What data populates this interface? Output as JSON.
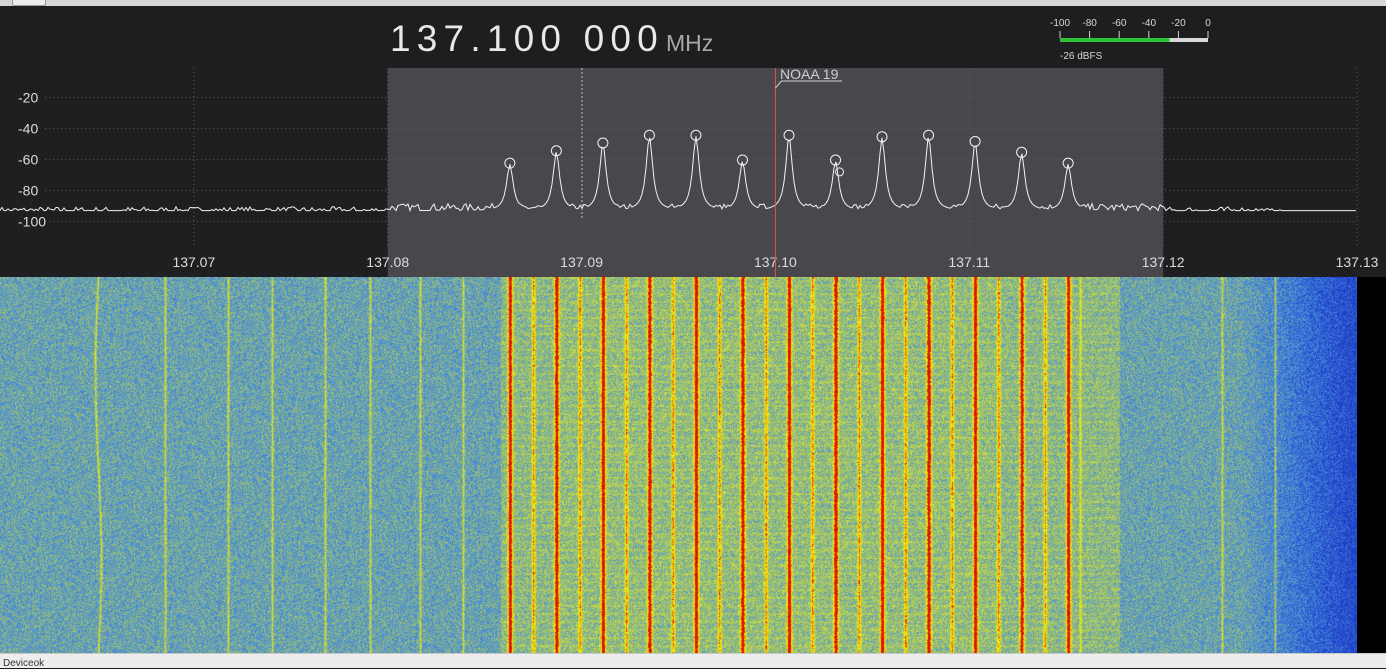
{
  "frequency": {
    "digits": "137.100 000",
    "unit": "MHz"
  },
  "level_meter": {
    "scale_labels": [
      "-100",
      "-80",
      "-60",
      "-40",
      "-20",
      "0"
    ],
    "level_text": "-26 dBFS",
    "level_fraction": 0.74,
    "bar_color": "#2ec43a"
  },
  "spectrum": {
    "y_labels": [
      "-20",
      "-40",
      "-60",
      "-80",
      "-100"
    ],
    "x_labels": [
      "137.07",
      "137.08",
      "137.09",
      "137.10",
      "137.11",
      "137.12",
      "137.13"
    ],
    "bookmark_label": "NOAA 19",
    "colors": {
      "trace": "#f2f2f2",
      "grid": "#5a5a5a",
      "passband": "#49474b",
      "center_line": "#e0505a",
      "axis_text": "#dcdcdc"
    }
  },
  "chart_data": {
    "type": "line",
    "xlim": [
      137.06,
      137.13
    ],
    "ylim": [
      -110,
      -10
    ],
    "x_unit": "MHz",
    "y_unit": "dBFS",
    "noise_floor": -93,
    "passband": [
      137.08,
      137.12
    ],
    "tuned_frequency": 137.1,
    "peaks": [
      {
        "x": 137.0863,
        "y": -63
      },
      {
        "x": 137.0887,
        "y": -55
      },
      {
        "x": 137.0911,
        "y": -50
      },
      {
        "x": 137.0935,
        "y": -45
      },
      {
        "x": 137.0959,
        "y": -45
      },
      {
        "x": 137.0983,
        "y": -61
      },
      {
        "x": 137.1007,
        "y": -45
      },
      {
        "x": 137.1031,
        "y": -61
      },
      {
        "x": 137.1055,
        "y": -46
      },
      {
        "x": 137.1079,
        "y": -45
      },
      {
        "x": 137.1103,
        "y": -49
      },
      {
        "x": 137.1127,
        "y": -56
      },
      {
        "x": 137.1151,
        "y": -63
      }
    ]
  },
  "status_bar": {
    "text": "Deviceok"
  }
}
